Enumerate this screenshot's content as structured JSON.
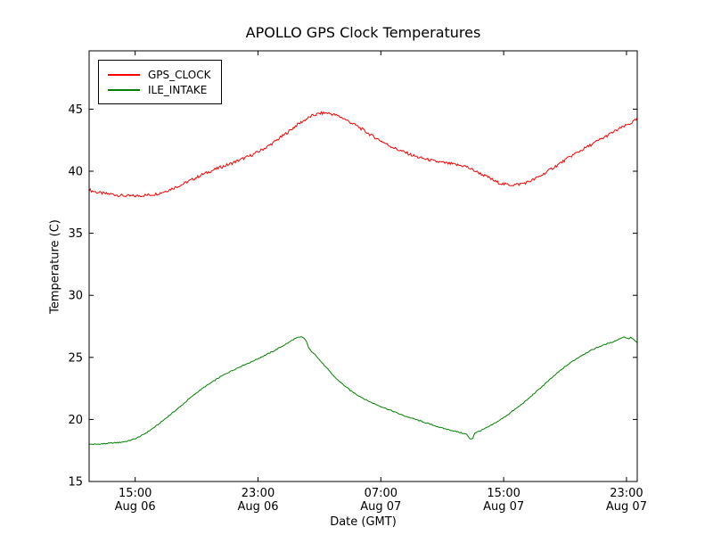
{
  "chart_data": {
    "type": "line",
    "title": "APOLLO GPS Clock Temperatures",
    "xlabel": "Date (GMT)",
    "ylabel": "Temperature (C)",
    "ylim": [
      15,
      49.7
    ],
    "xlim_hours": [
      0,
      35.7
    ],
    "grid": false,
    "legend_position": "upper left",
    "y_ticks": [
      15,
      20,
      25,
      30,
      35,
      40,
      45
    ],
    "x_ticks": [
      {
        "pos": 3,
        "time": "15:00",
        "date": "Aug 06"
      },
      {
        "pos": 11,
        "time": "23:00",
        "date": "Aug 06"
      },
      {
        "pos": 19,
        "time": "07:00",
        "date": "Aug 07"
      },
      {
        "pos": 27,
        "time": "15:00",
        "date": "Aug 07"
      },
      {
        "pos": 35,
        "time": "23:00",
        "date": "Aug 07"
      }
    ],
    "series": [
      {
        "name": "GPS_CLOCK",
        "color": "#ff0000",
        "jitter": 0.12,
        "points": [
          [
            0,
            38.5
          ],
          [
            0.5,
            38.3
          ],
          [
            1,
            38.2
          ],
          [
            1.5,
            38.15
          ],
          [
            2,
            38.05
          ],
          [
            2.5,
            38.0
          ],
          [
            3,
            38.0
          ],
          [
            3.5,
            38.05
          ],
          [
            4,
            38.1
          ],
          [
            4.5,
            38.2
          ],
          [
            5,
            38.4
          ],
          [
            5.5,
            38.65
          ],
          [
            6,
            38.9
          ],
          [
            6.5,
            39.2
          ],
          [
            7,
            39.5
          ],
          [
            7.5,
            39.8
          ],
          [
            8,
            40.05
          ],
          [
            8.5,
            40.3
          ],
          [
            9,
            40.5
          ],
          [
            9.5,
            40.75
          ],
          [
            10,
            41.0
          ],
          [
            10.5,
            41.25
          ],
          [
            11,
            41.55
          ],
          [
            11.5,
            41.9
          ],
          [
            12,
            42.3
          ],
          [
            12.5,
            42.75
          ],
          [
            13,
            43.2
          ],
          [
            13.5,
            43.7
          ],
          [
            14,
            44.1
          ],
          [
            14.5,
            44.45
          ],
          [
            15,
            44.65
          ],
          [
            15.5,
            44.7
          ],
          [
            16,
            44.55
          ],
          [
            16.5,
            44.3
          ],
          [
            17,
            43.95
          ],
          [
            17.5,
            43.6
          ],
          [
            18,
            43.2
          ],
          [
            18.5,
            42.8
          ],
          [
            19,
            42.45
          ],
          [
            19.5,
            42.1
          ],
          [
            20,
            41.8
          ],
          [
            20.5,
            41.55
          ],
          [
            21,
            41.3
          ],
          [
            21.5,
            41.1
          ],
          [
            22,
            40.95
          ],
          [
            22.5,
            40.8
          ],
          [
            23,
            40.7
          ],
          [
            23.5,
            40.6
          ],
          [
            24,
            40.5
          ],
          [
            24.5,
            40.4
          ],
          [
            25,
            40.1
          ],
          [
            25.5,
            39.8
          ],
          [
            26,
            39.5
          ],
          [
            26.5,
            39.15
          ],
          [
            27,
            38.95
          ],
          [
            27.5,
            38.9
          ],
          [
            28,
            38.95
          ],
          [
            28.5,
            39.1
          ],
          [
            29,
            39.35
          ],
          [
            29.5,
            39.7
          ],
          [
            30,
            40.1
          ],
          [
            30.5,
            40.5
          ],
          [
            31,
            40.9
          ],
          [
            31.5,
            41.3
          ],
          [
            32,
            41.65
          ],
          [
            32.5,
            42.0
          ],
          [
            33,
            42.35
          ],
          [
            33.5,
            42.7
          ],
          [
            34,
            43.05
          ],
          [
            34.5,
            43.4
          ],
          [
            35,
            43.7
          ],
          [
            35.4,
            43.95
          ],
          [
            35.7,
            44.2
          ]
        ]
      },
      {
        "name": "ILE_INTAKE",
        "color": "#008000",
        "jitter": 0.04,
        "points": [
          [
            0,
            18.0
          ],
          [
            0.5,
            18.0
          ],
          [
            1,
            18.05
          ],
          [
            1.5,
            18.1
          ],
          [
            2,
            18.15
          ],
          [
            2.5,
            18.25
          ],
          [
            3,
            18.45
          ],
          [
            3.5,
            18.75
          ],
          [
            4,
            19.15
          ],
          [
            4.5,
            19.6
          ],
          [
            5,
            20.1
          ],
          [
            5.5,
            20.6
          ],
          [
            6,
            21.1
          ],
          [
            6.5,
            21.65
          ],
          [
            7,
            22.15
          ],
          [
            7.5,
            22.6
          ],
          [
            8,
            23.0
          ],
          [
            8.5,
            23.4
          ],
          [
            9,
            23.75
          ],
          [
            9.5,
            24.05
          ],
          [
            10,
            24.35
          ],
          [
            10.5,
            24.6
          ],
          [
            11,
            24.9
          ],
          [
            11.5,
            25.2
          ],
          [
            12,
            25.5
          ],
          [
            12.5,
            25.85
          ],
          [
            13,
            26.2
          ],
          [
            13.3,
            26.45
          ],
          [
            13.6,
            26.6
          ],
          [
            13.9,
            26.65
          ],
          [
            14.1,
            26.4
          ],
          [
            14.3,
            25.8
          ],
          [
            14.5,
            25.4
          ],
          [
            14.7,
            25.3
          ],
          [
            15,
            24.8
          ],
          [
            15.5,
            24.1
          ],
          [
            16,
            23.4
          ],
          [
            16.5,
            22.85
          ],
          [
            17,
            22.35
          ],
          [
            17.5,
            21.95
          ],
          [
            18,
            21.6
          ],
          [
            18.5,
            21.3
          ],
          [
            19,
            21.05
          ],
          [
            19.5,
            20.8
          ],
          [
            20,
            20.55
          ],
          [
            20.5,
            20.3
          ],
          [
            21,
            20.1
          ],
          [
            21.5,
            19.9
          ],
          [
            22,
            19.7
          ],
          [
            22.5,
            19.5
          ],
          [
            23,
            19.3
          ],
          [
            23.5,
            19.15
          ],
          [
            24,
            19.0
          ],
          [
            24.3,
            18.9
          ],
          [
            24.6,
            18.8
          ],
          [
            24.8,
            18.4
          ],
          [
            25,
            18.5
          ],
          [
            25.1,
            18.9
          ],
          [
            25.5,
            19.1
          ],
          [
            26,
            19.4
          ],
          [
            26.5,
            19.75
          ],
          [
            27,
            20.15
          ],
          [
            27.5,
            20.6
          ],
          [
            28,
            21.05
          ],
          [
            28.5,
            21.55
          ],
          [
            29,
            22.1
          ],
          [
            29.5,
            22.65
          ],
          [
            30,
            23.2
          ],
          [
            30.5,
            23.75
          ],
          [
            31,
            24.25
          ],
          [
            31.5,
            24.7
          ],
          [
            32,
            25.1
          ],
          [
            32.5,
            25.45
          ],
          [
            33,
            25.75
          ],
          [
            33.5,
            26.0
          ],
          [
            34,
            26.2
          ],
          [
            34.4,
            26.4
          ],
          [
            34.7,
            26.6
          ],
          [
            34.9,
            26.65
          ],
          [
            35.1,
            26.5
          ],
          [
            35.3,
            26.6
          ],
          [
            35.5,
            26.4
          ],
          [
            35.7,
            26.15
          ]
        ]
      }
    ]
  }
}
